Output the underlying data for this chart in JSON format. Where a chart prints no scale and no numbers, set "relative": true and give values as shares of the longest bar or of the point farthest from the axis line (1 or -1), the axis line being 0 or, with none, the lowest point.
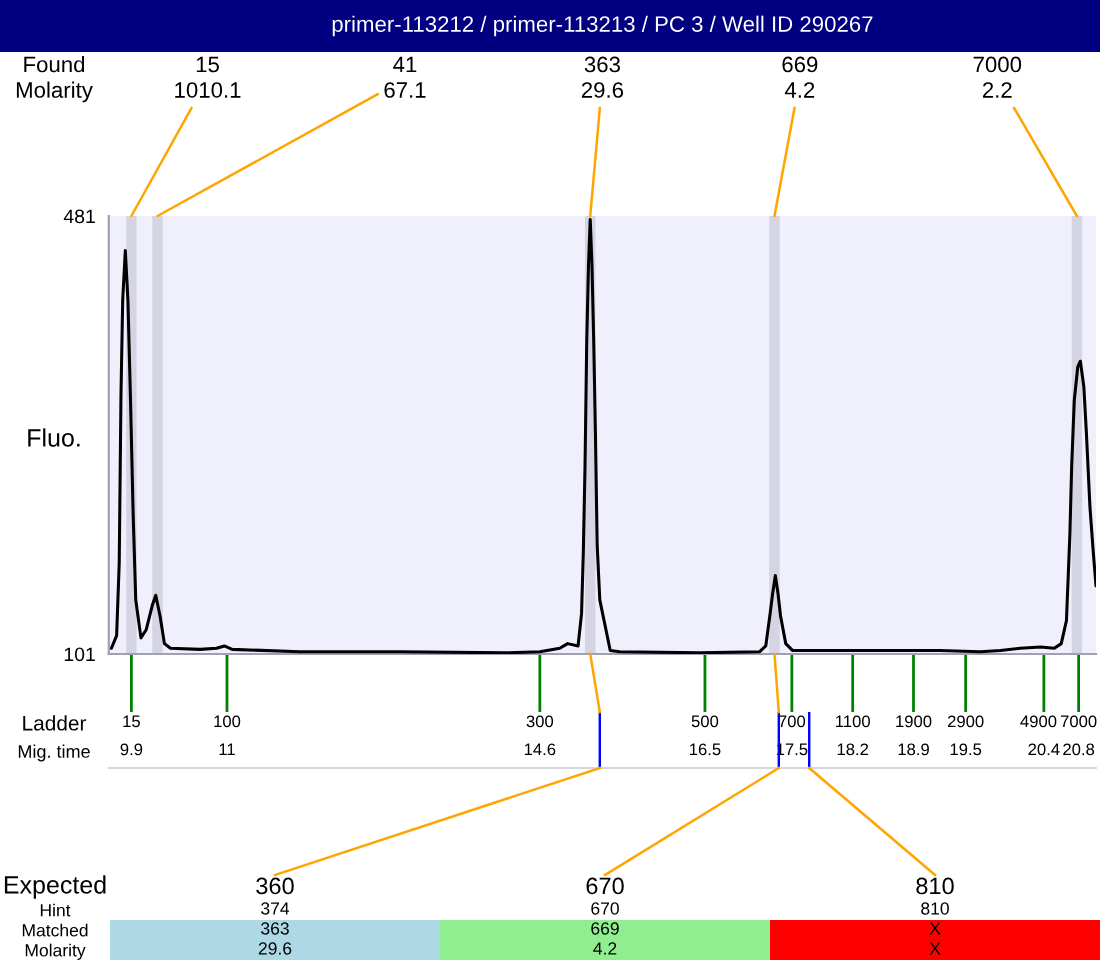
{
  "chart_data": [
    {
      "type": "line",
      "title": "primer-113212 / primer-113213 / PC 3 / Well ID 290267",
      "ylabel": "Fluo.",
      "xlabel": "Mig. time",
      "x": [
        9.67,
        9.73,
        9.76,
        9.78,
        9.8,
        9.83,
        9.86,
        9.89,
        9.92,
        9.95,
        10.01,
        10.07,
        10.14,
        10.18,
        10.23,
        10.28,
        10.35,
        10.69,
        10.88,
        10.97,
        11.06,
        11.84,
        12.99,
        14.21,
        14.6,
        14.83,
        14.92,
        15.04,
        15.08,
        15.1,
        15.12,
        15.14,
        15.16,
        15.18,
        15.2,
        15.22,
        15.24,
        15.26,
        15.29,
        15.41,
        15.52,
        16.44,
        17.13,
        17.2,
        17.25,
        17.28,
        17.31,
        17.34,
        17.37,
        17.43,
        17.51,
        18.05,
        18.88,
        19.2,
        19.67,
        19.9,
        20.13,
        20.36,
        20.52,
        20.6,
        20.66,
        20.7,
        20.72,
        20.75,
        20.79,
        20.82,
        20.86,
        20.89,
        20.93,
        20.97,
        21.0
      ],
      "values": [
        106,
        117,
        180,
        325,
        408,
        451,
        408,
        321,
        223,
        148,
        115,
        122,
        143,
        152,
        134,
        110,
        106,
        105,
        106,
        108,
        105,
        103,
        103,
        102,
        103,
        106,
        110,
        108,
        136,
        188,
        264,
        373,
        438,
        478,
        438,
        373,
        292,
        195,
        148,
        104,
        103,
        102,
        103,
        108,
        136,
        154,
        169,
        154,
        134,
        110,
        104,
        104,
        104,
        104,
        103,
        104,
        106,
        107,
        106,
        110,
        130,
        206,
        264,
        321,
        350,
        355,
        333,
        292,
        229,
        188,
        160
      ],
      "color": "#000000",
      "xlim": [
        9.64,
        21.0
      ],
      "ylim": [
        101,
        481
      ],
      "xticks": [
        9.9,
        11,
        14.6,
        16.5,
        17.5,
        18.2,
        18.9,
        19.5,
        20.4,
        20.8
      ],
      "yticks": [
        101,
        481
      ],
      "bands": [
        {
          "axis": "x",
          "from": 9.84,
          "to": 9.96,
          "color": "#d4d4e2"
        },
        {
          "axis": "x",
          "from": 10.14,
          "to": 10.26,
          "color": "#d4d4e2"
        },
        {
          "axis": "x",
          "from": 15.12,
          "to": 15.24,
          "color": "#d4d4e2"
        },
        {
          "axis": "x",
          "from": 17.24,
          "to": 17.36,
          "color": "#d4d4e2"
        },
        {
          "axis": "x",
          "from": 20.72,
          "to": 20.84,
          "color": "#d4d4e2"
        }
      ],
      "annotations": [
        "Found\nMolarity",
        {
          "text": "15\n1010.1",
          "x": 9.9,
          "y": 481
        },
        {
          "text": "41\n67.1",
          "x": 10.2,
          "y": 481
        },
        {
          "text": "363\n29.6",
          "x": 15.18,
          "y": 481
        },
        {
          "text": "669\n4.2",
          "x": 17.3,
          "y": 481
        },
        {
          "text": "7000\n2.2",
          "x": 20.78,
          "y": 481
        }
      ]
    },
    {
      "type": "other",
      "annotations": [
        "Ladder",
        "15",
        "100",
        "300",
        "500",
        "700",
        "1100",
        "1900",
        "2900",
        "4900",
        "7000"
      ]
    },
    {
      "type": "bar",
      "relative": true,
      "x": [
        15.29,
        17.35,
        17.7
      ],
      "values": [
        1,
        1,
        1
      ],
      "color": "#0000ff",
      "xlim": [
        9.64,
        21.0
      ],
      "tick_labels": false
    },
    {
      "type": "other",
      "xlabel": "Expected",
      "categories": [
        "360",
        "670",
        "810"
      ],
      "data_labels": true,
      "annotations": [
        "X",
        "X"
      ],
      "series": [
        {
          "name": "Hint",
          "values": [
            374,
            670,
            810
          ]
        },
        {
          "name": "Matched",
          "values": [
            363,
            669,
            null
          ],
          "colors": [
            "#add8e6",
            "#90ee90",
            "#ff0000"
          ]
        },
        {
          "name": "Molarity",
          "values": [
            29.6,
            4.2,
            null
          ],
          "colors": [
            "#add8e6",
            "#90ee90",
            "#ff0000"
          ]
        }
      ]
    }
  ]
}
